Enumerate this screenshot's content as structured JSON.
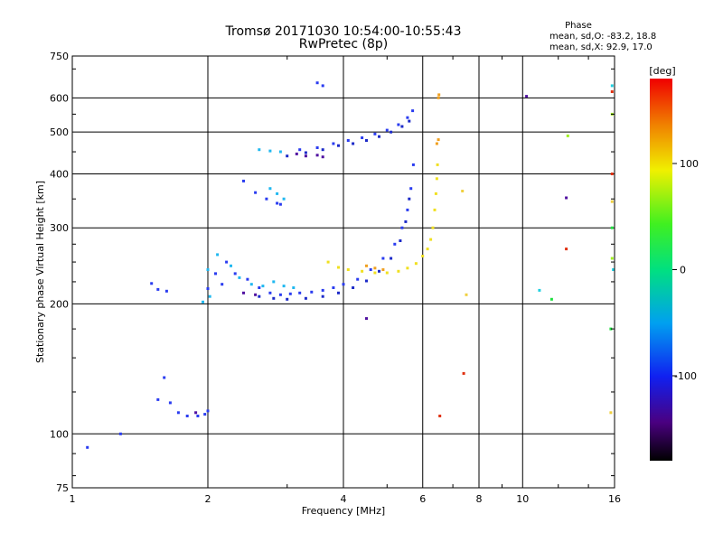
{
  "header": {
    "title_line1": "Tromsø 20171030 10:54:00-10:55:43",
    "title_line2": "RwPretec (8p)",
    "phase_title": "Phase",
    "phase_line_o": "mean, sd,O: -83.2, 18.8",
    "phase_line_x": "mean, sd,X: 92.9, 17.0"
  },
  "colorbar": {
    "unit_label": "[deg]",
    "tick_labels": [
      "100",
      "0",
      "-100"
    ],
    "tick_values": [
      100,
      0,
      -100
    ],
    "range": [
      -180,
      180
    ]
  },
  "chart_data": {
    "type": "scatter",
    "title": "Tromsø 20171030 10:54:00-10:55:43",
    "subtitle": "RwPretec (8p)",
    "xlabel": "Frequency [MHz]",
    "ylabel": "Stationary phase Virtual Height [km]",
    "x_scale": "log",
    "y_scale": "log",
    "xlim": [
      1,
      16
    ],
    "ylim": [
      75,
      750
    ],
    "x_ticks": [
      1,
      2,
      4,
      6,
      8,
      10,
      16
    ],
    "x_tick_labels": [
      "1",
      "2",
      "4",
      "6",
      "8",
      "10",
      "16"
    ],
    "y_ticks": [
      75,
      100,
      200,
      300,
      400,
      500,
      600,
      750
    ],
    "y_tick_labels": [
      "75",
      "100",
      "200",
      "300",
      "400",
      "500",
      "600",
      "750"
    ],
    "grid": true,
    "color_variable": "phase [deg]",
    "series": [
      {
        "color": "#2a3cf0",
        "points": [
          [
            1.08,
            93
          ],
          [
            1.28,
            100
          ],
          [
            1.55,
            120
          ],
          [
            1.6,
            135
          ],
          [
            1.65,
            118
          ],
          [
            1.72,
            112
          ],
          [
            1.8,
            110
          ],
          [
            1.9,
            110
          ],
          [
            1.97,
            111
          ],
          [
            2.0,
            113
          ],
          [
            1.5,
            223
          ],
          [
            1.55,
            216
          ],
          [
            1.62,
            214
          ],
          [
            2.0,
            217
          ],
          [
            2.08,
            235
          ],
          [
            2.15,
            222
          ],
          [
            2.2,
            250
          ],
          [
            2.3,
            235
          ],
          [
            2.45,
            228
          ],
          [
            2.6,
            218
          ],
          [
            2.75,
            212
          ],
          [
            2.9,
            210
          ],
          [
            3.05,
            211
          ],
          [
            3.2,
            212
          ],
          [
            3.4,
            213
          ],
          [
            3.6,
            215
          ],
          [
            3.8,
            218
          ],
          [
            4.0,
            222
          ],
          [
            4.3,
            228
          ],
          [
            4.6,
            240
          ],
          [
            4.9,
            255
          ],
          [
            5.2,
            275
          ],
          [
            5.4,
            300
          ],
          [
            5.55,
            330
          ],
          [
            5.65,
            370
          ],
          [
            5.72,
            420
          ],
          [
            3.2,
            455
          ],
          [
            3.5,
            460
          ],
          [
            3.8,
            470
          ],
          [
            4.1,
            478
          ],
          [
            4.4,
            485
          ],
          [
            4.7,
            495
          ],
          [
            5.0,
            505
          ],
          [
            5.3,
            520
          ],
          [
            5.55,
            540
          ],
          [
            5.7,
            560
          ],
          [
            3.5,
            650
          ],
          [
            3.6,
            640
          ],
          [
            2.4,
            385
          ],
          [
            2.55,
            362
          ],
          [
            2.7,
            350
          ],
          [
            2.85,
            342
          ],
          [
            2.9,
            340
          ]
        ]
      },
      {
        "color": "#1c2ac8",
        "points": [
          [
            2.6,
            208
          ],
          [
            2.8,
            206
          ],
          [
            3.0,
            205
          ],
          [
            3.3,
            206
          ],
          [
            3.6,
            208
          ],
          [
            3.9,
            212
          ],
          [
            4.2,
            218
          ],
          [
            4.5,
            226
          ],
          [
            4.8,
            238
          ],
          [
            5.1,
            255
          ],
          [
            5.35,
            280
          ],
          [
            5.5,
            310
          ],
          [
            5.6,
            350
          ],
          [
            3.0,
            440
          ],
          [
            3.3,
            448
          ],
          [
            3.6,
            455
          ],
          [
            3.9,
            465
          ],
          [
            4.2,
            470
          ],
          [
            4.5,
            478
          ],
          [
            4.8,
            488
          ],
          [
            5.1,
            500
          ],
          [
            5.4,
            515
          ],
          [
            5.6,
            530
          ]
        ]
      },
      {
        "color": "#20b8f0",
        "points": [
          [
            2.0,
            240
          ],
          [
            2.1,
            260
          ],
          [
            2.25,
            245
          ],
          [
            2.35,
            230
          ],
          [
            2.5,
            222
          ],
          [
            2.65,
            220
          ],
          [
            2.8,
            225
          ],
          [
            2.95,
            220
          ],
          [
            3.1,
            218
          ],
          [
            2.75,
            370
          ],
          [
            2.85,
            360
          ],
          [
            2.95,
            350
          ],
          [
            2.6,
            455
          ],
          [
            2.75,
            452
          ],
          [
            2.9,
            450
          ],
          [
            1.95,
            202
          ],
          [
            2.02,
            208
          ]
        ]
      },
      {
        "color": "#f0e020",
        "points": [
          [
            3.7,
            250
          ],
          [
            3.9,
            243
          ],
          [
            4.1,
            240
          ],
          [
            4.4,
            238
          ],
          [
            4.7,
            236
          ],
          [
            5.0,
            236
          ],
          [
            5.3,
            238
          ],
          [
            5.55,
            242
          ],
          [
            5.8,
            248
          ],
          [
            6.0,
            258
          ],
          [
            6.15,
            268
          ],
          [
            6.25,
            282
          ],
          [
            6.32,
            300
          ],
          [
            6.38,
            330
          ],
          [
            6.42,
            360
          ],
          [
            6.45,
            390
          ],
          [
            6.47,
            420
          ]
        ]
      },
      {
        "color": "#f0a020",
        "points": [
          [
            4.5,
            245
          ],
          [
            4.7,
            242
          ],
          [
            4.9,
            240
          ],
          [
            6.5,
            480
          ],
          [
            6.45,
            470
          ],
          [
            6.5,
            600
          ],
          [
            6.52,
            610
          ]
        ]
      },
      {
        "color": "#5010a0",
        "points": [
          [
            3.15,
            445
          ],
          [
            3.3,
            440
          ],
          [
            3.5,
            442
          ],
          [
            3.6,
            438
          ],
          [
            1.88,
            112
          ],
          [
            2.4,
            212
          ],
          [
            2.55,
            210
          ],
          [
            4.5,
            185
          ],
          [
            10.2,
            605
          ],
          [
            12.5,
            352
          ]
        ]
      },
      {
        "color": "#e03010",
        "points": [
          [
            6.55,
            110
          ],
          [
            7.4,
            138
          ],
          [
            12.5,
            268
          ],
          [
            15.8,
            400
          ],
          [
            15.8,
            620
          ]
        ]
      },
      {
        "color": "#20e040",
        "points": [
          [
            11.6,
            205
          ],
          [
            15.7,
            175
          ],
          [
            15.8,
            300
          ]
        ]
      },
      {
        "color": "#a0f020",
        "points": [
          [
            12.6,
            490
          ],
          [
            15.8,
            550
          ],
          [
            15.8,
            255
          ]
        ]
      },
      {
        "color": "#20d0e0",
        "points": [
          [
            15.8,
            640
          ],
          [
            15.9,
            240
          ],
          [
            10.9,
            215
          ]
        ]
      },
      {
        "color": "#f0d040",
        "points": [
          [
            15.7,
            112
          ],
          [
            15.8,
            345
          ],
          [
            7.35,
            365
          ],
          [
            7.5,
            210
          ]
        ]
      }
    ]
  }
}
